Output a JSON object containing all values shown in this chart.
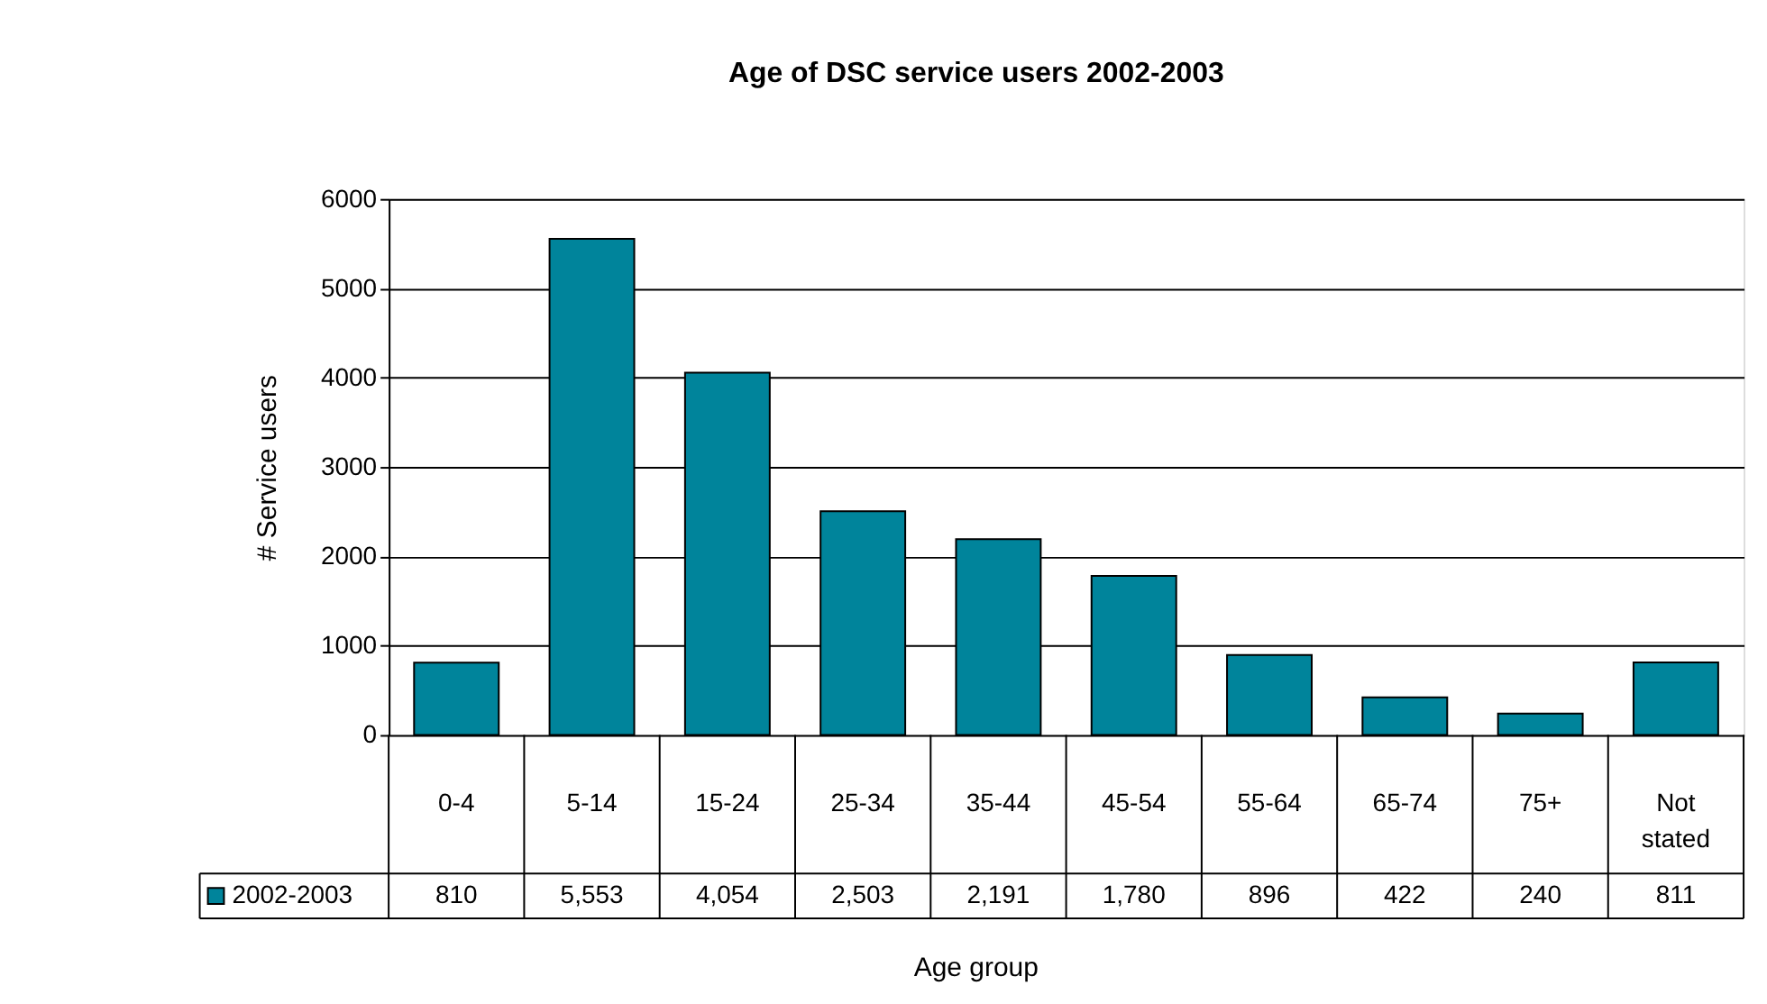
{
  "chart_data": {
    "type": "bar",
    "title": "Age of DSC service users 2002-2003",
    "xlabel": "Age group",
    "ylabel": "# Service users",
    "categories": [
      "0-4",
      "5-14",
      "15-24",
      "25-34",
      "35-44",
      "45-54",
      "55-64",
      "65-74",
      "75+",
      "Not stated"
    ],
    "series": [
      {
        "name": "2002-2003",
        "color": "#00849b",
        "values": [
          810,
          5553,
          4054,
          2503,
          2191,
          1780,
          896,
          422,
          240,
          811
        ],
        "value_labels": [
          "810",
          "5,553",
          "4,054",
          "2,503",
          "2,191",
          "1,780",
          "896",
          "422",
          "240",
          "811"
        ]
      }
    ],
    "ylim": [
      0,
      6000
    ],
    "yticks": [
      0,
      1000,
      2000,
      3000,
      4000,
      5000,
      6000
    ],
    "grid": "y",
    "legend": "bottom"
  }
}
